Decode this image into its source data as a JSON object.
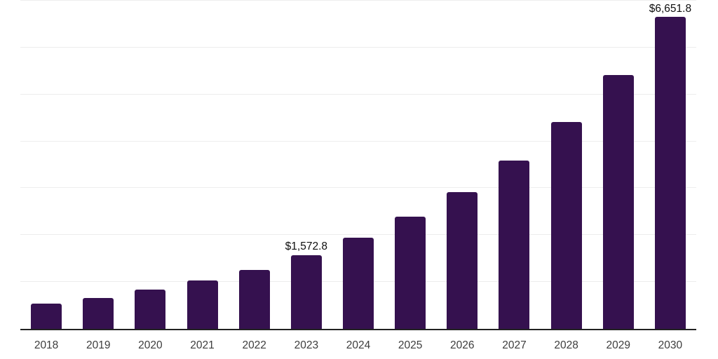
{
  "chart_data": {
    "type": "bar",
    "title": "",
    "xlabel": "",
    "ylabel": "",
    "categories": [
      "2018",
      "2019",
      "2020",
      "2021",
      "2022",
      "2023",
      "2024",
      "2025",
      "2026",
      "2027",
      "2028",
      "2029",
      "2030"
    ],
    "values": [
      545,
      665,
      835,
      1025,
      1250,
      1572.8,
      1940,
      2390,
      2910,
      3585,
      4410,
      5415,
      6651.8
    ],
    "data_labels": [
      "",
      "",
      "",
      "",
      "",
      "$1,572.8",
      "",
      "",
      "",
      "",
      "",
      "",
      "$6,651.8"
    ],
    "ylim": [
      0,
      7000
    ],
    "gridline_step": 1000,
    "grid": "horizontal",
    "y_tick_labels_visible": false,
    "legend_position": "none",
    "colors": {
      "bar": "#35114F",
      "gridline": "#EDEDED",
      "axis_line": "#222222",
      "x_tick_label": "#3D3D3D",
      "data_label": "#0F0F0F",
      "background": "#FFFFFF"
    }
  }
}
